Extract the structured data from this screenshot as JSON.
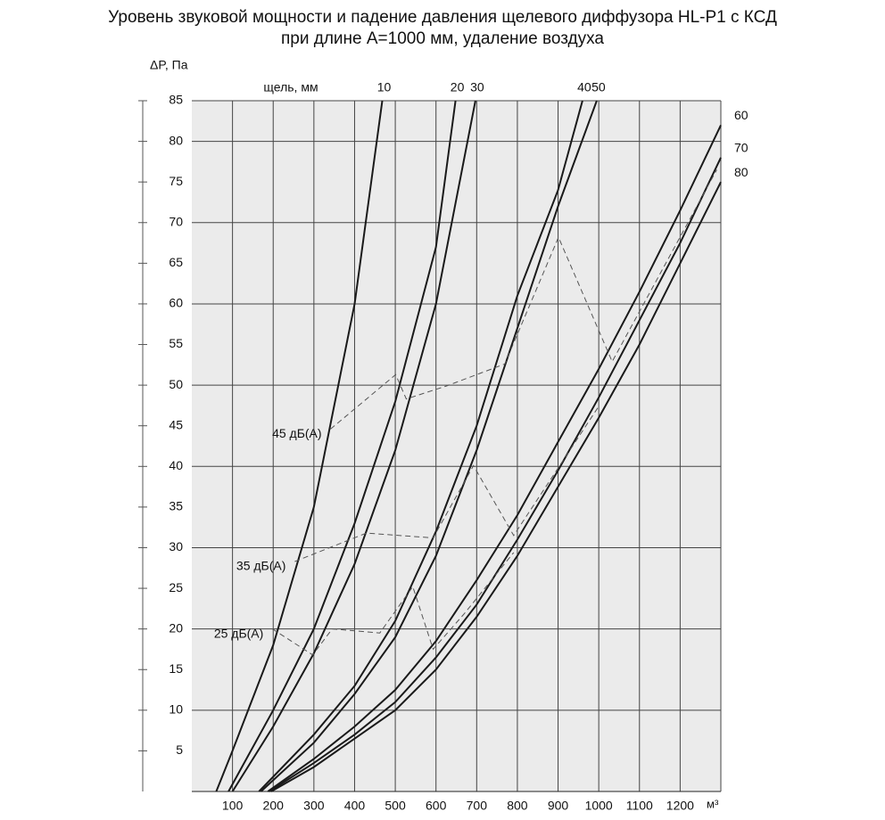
{
  "chart_data": {
    "type": "line",
    "title": "Уровень звуковой мощности и падение давления щелевого диффузора HL-P1 с КСД",
    "subtitle": "при длине А=1000 мм, удаление воздуха",
    "y_label": "ΔP, Па",
    "x_unit": "м³",
    "series_label": "щель, мм",
    "xlim": [
      0,
      1300
    ],
    "ylim": [
      0,
      85
    ],
    "xticks": [
      100,
      200,
      300,
      400,
      500,
      600,
      700,
      800,
      900,
      1000,
      1100,
      1200
    ],
    "yticks": [
      5,
      10,
      15,
      20,
      25,
      30,
      35,
      40,
      45,
      50,
      55,
      60,
      65,
      70,
      75,
      80,
      85
    ],
    "grid": true,
    "series": [
      {
        "name": "10",
        "color": "#1a1a1a",
        "x": [
          60,
          100,
          200,
          300,
          400,
          468
        ],
        "values": [
          0,
          5,
          18,
          35,
          60,
          85
        ]
      },
      {
        "name": "20",
        "color": "#1a1a1a",
        "x": [
          90,
          200,
          300,
          400,
          500,
          600,
          648
        ],
        "values": [
          0,
          10,
          20,
          33,
          48,
          67,
          85
        ]
      },
      {
        "name": "30",
        "color": "#1a1a1a",
        "x": [
          100,
          200,
          300,
          400,
          500,
          600,
          697
        ],
        "values": [
          0,
          8,
          17,
          28,
          42,
          60,
          85
        ]
      },
      {
        "name": "40",
        "color": "#1a1a1a",
        "x": [
          165,
          300,
          400,
          500,
          600,
          700,
          800,
          900,
          960
        ],
        "values": [
          0,
          7,
          13,
          21,
          32,
          45,
          61,
          74,
          85
        ]
      },
      {
        "name": "50",
        "color": "#1a1a1a",
        "x": [
          170,
          300,
          400,
          500,
          600,
          700,
          800,
          900,
          995
        ],
        "values": [
          0,
          6,
          12,
          19,
          29,
          42,
          57,
          72,
          85
        ]
      },
      {
        "name": "60",
        "color": "#1a1a1a",
        "x": [
          187,
          300,
          400,
          500,
          600,
          700,
          800,
          900,
          1000,
          1100,
          1200,
          1300
        ],
        "values": [
          0,
          4,
          8,
          12.5,
          18.5,
          26,
          34,
          43,
          52,
          61.5,
          71.5,
          82
        ]
      },
      {
        "name": "70",
        "color": "#1a1a1a",
        "x": [
          190,
          300,
          400,
          500,
          600,
          700,
          800,
          900,
          1000,
          1100,
          1200,
          1300
        ],
        "values": [
          0,
          3.5,
          7,
          11,
          16.5,
          23,
          31,
          39.5,
          48.5,
          58,
          67.5,
          78
        ]
      },
      {
        "name": "80",
        "color": "#1a1a1a",
        "x": [
          195,
          300,
          400,
          500,
          600,
          700,
          800,
          900,
          1000,
          1100,
          1200,
          1300
        ],
        "values": [
          0,
          3,
          6.5,
          10,
          15,
          21.5,
          29,
          37.5,
          46,
          55,
          65,
          75
        ]
      }
    ],
    "noise_lines": [
      {
        "name": "45 дБ(А)",
        "color": "#555555",
        "x": [
          341,
          501,
          527,
          626,
          769,
          901,
          1033,
          1290
        ],
        "values": [
          44.6,
          51.3,
          48.3,
          49.9,
          52.6,
          68.2,
          52.9,
          76.5
        ]
      },
      {
        "name": "35 дБ(А)",
        "color": "#555555",
        "x": [
          253,
          429,
          593,
          692,
          791,
          1000
        ],
        "values": [
          28.3,
          31.8,
          31.2,
          40.1,
          31.5,
          47.4
        ]
      },
      {
        "name": "25 дБ(А)",
        "color": "#555555",
        "x": [
          198,
          297,
          345,
          462,
          543,
          593,
          670,
          791
        ],
        "values": [
          20,
          16.8,
          20,
          19.5,
          25.2,
          17.5,
          21.9,
          29.4
        ]
      }
    ]
  }
}
